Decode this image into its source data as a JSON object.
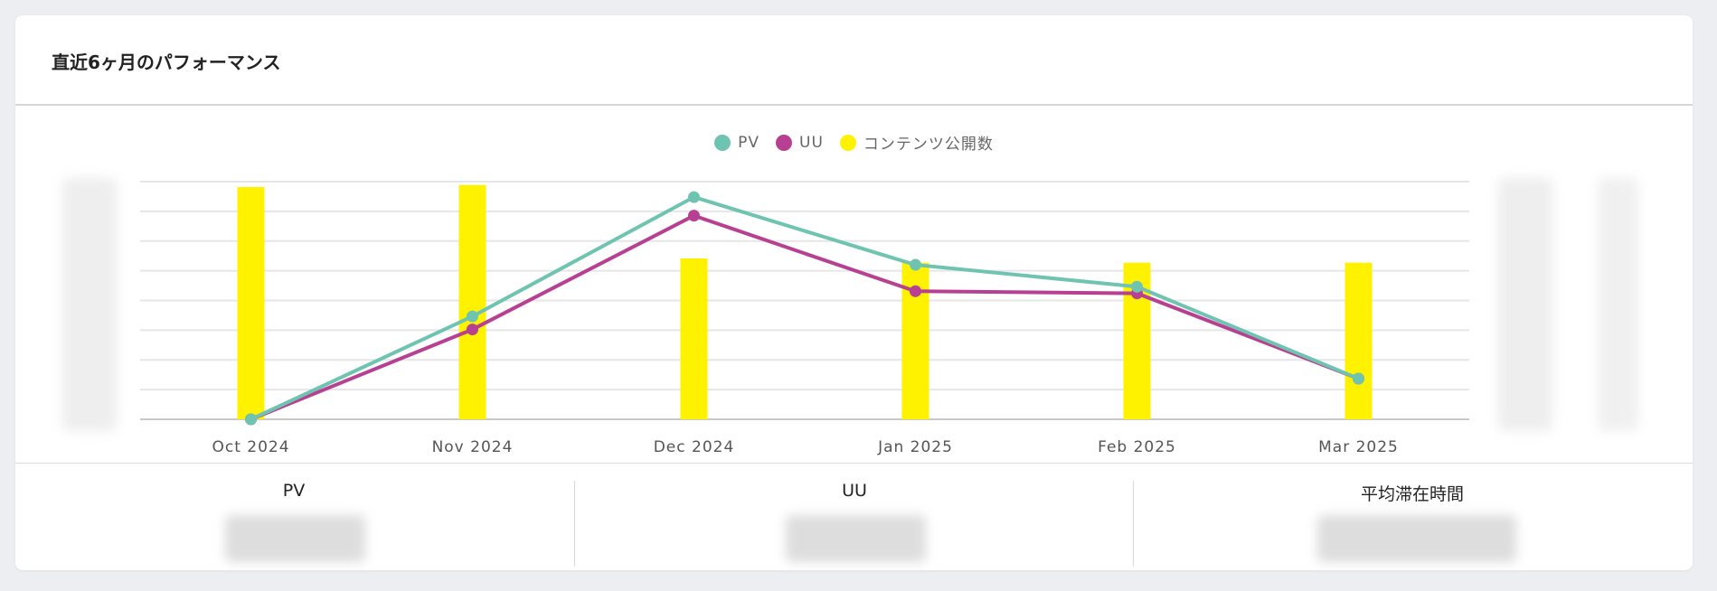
{
  "card": {
    "title": "直近6ヶ月のパフォーマンス"
  },
  "legend": [
    {
      "label": "PV",
      "color": "#6fc4b1"
    },
    {
      "label": "UU",
      "color": "#b84093"
    },
    {
      "label": "コンテンツ公開数",
      "color": "#fff200"
    }
  ],
  "chart_data": {
    "type": "bar+line",
    "categories": [
      "Oct 2024",
      "Nov 2024",
      "Dec 2024",
      "Jan 2025",
      "Feb 2025",
      "Mar 2025"
    ],
    "series": [
      {
        "name": "PV",
        "type": "line",
        "axis": "left",
        "values": [
          0,
          43.3,
          93.5,
          65.0,
          55.8,
          17.1
        ],
        "color": "#6fc4b1"
      },
      {
        "name": "UU",
        "type": "line",
        "axis": "left",
        "values": [
          0,
          37.8,
          85.7,
          53.9,
          53.0,
          17.1
        ],
        "color": "#b84093"
      },
      {
        "name": "コンテンツ公開数",
        "type": "bar",
        "axis": "right",
        "values": [
          97.7,
          98.6,
          67.7,
          65.9,
          65.9,
          65.9
        ],
        "color": "#fff200"
      }
    ],
    "ylim": [
      0,
      100
    ],
    "y_ticks_obscured": true,
    "grid": true,
    "legend_position": "top"
  },
  "stats": [
    {
      "label": "PV"
    },
    {
      "label": "UU"
    },
    {
      "label": "平均滞在時間"
    }
  ]
}
